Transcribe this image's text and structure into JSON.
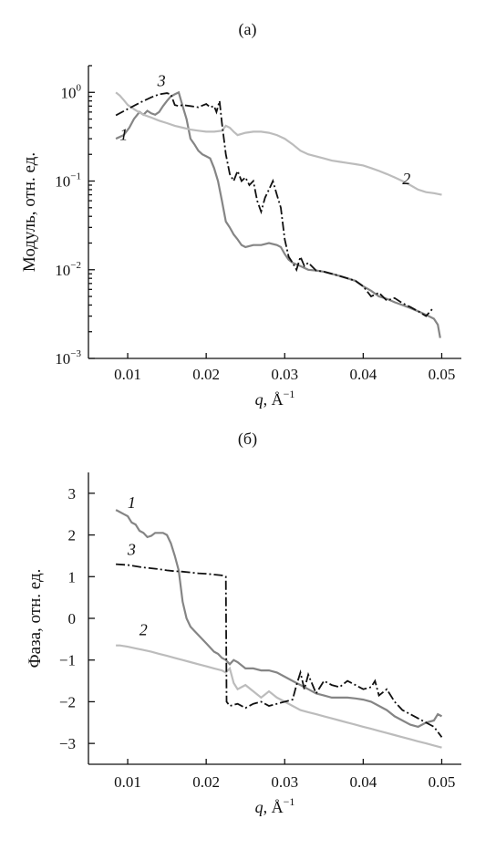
{
  "chart_data": [
    {
      "panel_label": "(а)",
      "type": "line",
      "ylabel": "Модуль, отн. ед.",
      "xlabel": {
        "var": "q",
        "rest": ", Å",
        "sup": "−1"
      },
      "xlim": [
        0.005,
        0.0525
      ],
      "yscale": "log",
      "ylim": [
        0.001,
        2.0
      ],
      "xticks": [
        0.01,
        0.02,
        0.03,
        0.04,
        0.05
      ],
      "xtick_labels": [
        "0.01",
        "0.02",
        "0.03",
        "0.04",
        "0.05"
      ],
      "yticks": [
        {
          "value": 1,
          "base": "10",
          "exp": "0"
        },
        {
          "value": 0.1,
          "base": "10",
          "exp": "−1"
        },
        {
          "value": 0.01,
          "base": "10",
          "exp": "−2"
        },
        {
          "value": 0.001,
          "base": "10",
          "exp": "−3"
        }
      ],
      "grid": false,
      "series": [
        {
          "name": "1",
          "style": "solid",
          "color": "#858585",
          "label_at": [
            0.0095,
            0.29
          ],
          "x": [
            0.0085,
            0.0095,
            0.0102,
            0.0108,
            0.0115,
            0.012,
            0.0125,
            0.013,
            0.0135,
            0.014,
            0.0145,
            0.015,
            0.0155,
            0.016,
            0.0165,
            0.017,
            0.0175,
            0.018,
            0.0185,
            0.019,
            0.0195,
            0.02,
            0.0205,
            0.021,
            0.0215,
            0.022,
            0.0225,
            0.023,
            0.0235,
            0.024,
            0.0245,
            0.025,
            0.026,
            0.027,
            0.028,
            0.029,
            0.0295,
            0.03,
            0.0305,
            0.031,
            0.032,
            0.033,
            0.034,
            0.035,
            0.036,
            0.037,
            0.038,
            0.039,
            0.04,
            0.041,
            0.042,
            0.043,
            0.044,
            0.045,
            0.046,
            0.047,
            0.048,
            0.049,
            0.0495,
            0.0498
          ],
          "y": [
            0.3,
            0.33,
            0.4,
            0.5,
            0.6,
            0.56,
            0.62,
            0.58,
            0.56,
            0.6,
            0.7,
            0.8,
            0.9,
            0.95,
            1.0,
            0.7,
            0.5,
            0.3,
            0.26,
            0.22,
            0.2,
            0.19,
            0.18,
            0.14,
            0.1,
            0.06,
            0.035,
            0.03,
            0.025,
            0.022,
            0.019,
            0.018,
            0.019,
            0.019,
            0.02,
            0.019,
            0.018,
            0.015,
            0.013,
            0.012,
            0.011,
            0.01,
            0.0098,
            0.0095,
            0.009,
            0.0085,
            0.008,
            0.0075,
            0.0065,
            0.0058,
            0.005,
            0.0047,
            0.0043,
            0.004,
            0.0037,
            0.0034,
            0.0031,
            0.0028,
            0.0024,
            0.0017
          ]
        },
        {
          "name": "2",
          "style": "solid",
          "color": "#bcbcbc",
          "label_at": [
            0.0455,
            0.092
          ],
          "x": [
            0.0085,
            0.009,
            0.0095,
            0.01,
            0.011,
            0.012,
            0.013,
            0.014,
            0.015,
            0.016,
            0.017,
            0.018,
            0.019,
            0.02,
            0.021,
            0.022,
            0.0225,
            0.023,
            0.0235,
            0.024,
            0.025,
            0.026,
            0.027,
            0.028,
            0.029,
            0.03,
            0.031,
            0.032,
            0.033,
            0.034,
            0.035,
            0.036,
            0.037,
            0.038,
            0.039,
            0.04,
            0.041,
            0.042,
            0.043,
            0.044,
            0.045,
            0.046,
            0.047,
            0.048,
            0.049,
            0.05
          ],
          "y": [
            1.0,
            0.92,
            0.82,
            0.72,
            0.63,
            0.56,
            0.52,
            0.48,
            0.45,
            0.42,
            0.4,
            0.38,
            0.37,
            0.36,
            0.36,
            0.37,
            0.42,
            0.4,
            0.36,
            0.33,
            0.35,
            0.36,
            0.36,
            0.35,
            0.33,
            0.3,
            0.26,
            0.22,
            0.2,
            0.19,
            0.18,
            0.17,
            0.165,
            0.16,
            0.155,
            0.15,
            0.14,
            0.13,
            0.12,
            0.11,
            0.1,
            0.09,
            0.08,
            0.075,
            0.073,
            0.07
          ]
        },
        {
          "name": "3",
          "style": "dashdot",
          "color": "#111111",
          "label_at": [
            0.0143,
            1.18
          ],
          "x": [
            0.0085,
            0.01,
            0.011,
            0.012,
            0.013,
            0.014,
            0.015,
            0.0155,
            0.016,
            0.0165,
            0.017,
            0.018,
            0.019,
            0.02,
            0.0205,
            0.021,
            0.0213,
            0.0217,
            0.022,
            0.0225,
            0.023,
            0.0235,
            0.024,
            0.0245,
            0.025,
            0.0255,
            0.026,
            0.0265,
            0.027,
            0.0275,
            0.028,
            0.0285,
            0.029,
            0.0295,
            0.03,
            0.0305,
            0.031,
            0.0315,
            0.032,
            0.0325,
            0.033,
            0.034,
            0.035,
            0.036,
            0.037,
            0.038,
            0.039,
            0.04,
            0.041,
            0.042,
            0.043,
            0.044,
            0.045,
            0.046,
            0.047,
            0.048,
            0.0488
          ],
          "y": [
            0.55,
            0.65,
            0.72,
            0.8,
            0.88,
            0.95,
            0.98,
            0.95,
            0.72,
            0.7,
            0.72,
            0.7,
            0.68,
            0.74,
            0.68,
            0.7,
            0.6,
            0.8,
            0.45,
            0.2,
            0.12,
            0.1,
            0.13,
            0.1,
            0.11,
            0.09,
            0.1,
            0.06,
            0.045,
            0.065,
            0.08,
            0.1,
            0.07,
            0.05,
            0.022,
            0.014,
            0.012,
            0.01,
            0.014,
            0.011,
            0.012,
            0.0098,
            0.0095,
            0.009,
            0.0085,
            0.008,
            0.0075,
            0.0065,
            0.005,
            0.0055,
            0.0045,
            0.0048,
            0.0042,
            0.0038,
            0.0034,
            0.003,
            0.0036
          ]
        }
      ]
    },
    {
      "panel_label": "(б)",
      "type": "line",
      "ylabel": "Фаза, отн. ед.",
      "xlabel": {
        "var": "q",
        "rest": ", Å",
        "sup": "−1"
      },
      "xlim": [
        0.005,
        0.0525
      ],
      "yscale": "linear",
      "ylim": [
        -3.5,
        3.5
      ],
      "xticks": [
        0.01,
        0.02,
        0.03,
        0.04,
        0.05
      ],
      "xtick_labels": [
        "0.01",
        "0.02",
        "0.03",
        "0.04",
        "0.05"
      ],
      "yticks": [
        {
          "value": 3,
          "label": "3"
        },
        {
          "value": 2,
          "label": "2"
        },
        {
          "value": 1,
          "label": "1"
        },
        {
          "value": 0,
          "label": "0"
        },
        {
          "value": -1,
          "label": "−1"
        },
        {
          "value": -2,
          "label": "−2"
        },
        {
          "value": -3,
          "label": "−3"
        }
      ],
      "grid": false,
      "series": [
        {
          "name": "1",
          "style": "solid",
          "color": "#858585",
          "label_at": [
            0.0105,
            2.65
          ],
          "x": [
            0.0085,
            0.009,
            0.0095,
            0.01,
            0.0105,
            0.011,
            0.0115,
            0.012,
            0.0125,
            0.013,
            0.0135,
            0.014,
            0.0145,
            0.015,
            0.0155,
            0.016,
            0.0165,
            0.017,
            0.0175,
            0.018,
            0.0185,
            0.019,
            0.0195,
            0.02,
            0.0205,
            0.021,
            0.0215,
            0.022,
            0.0225,
            0.023,
            0.0235,
            0.024,
            0.025,
            0.026,
            0.027,
            0.028,
            0.029,
            0.03,
            0.031,
            0.032,
            0.033,
            0.034,
            0.035,
            0.036,
            0.037,
            0.038,
            0.039,
            0.04,
            0.041,
            0.042,
            0.043,
            0.044,
            0.045,
            0.046,
            0.047,
            0.048,
            0.049,
            0.0495,
            0.05
          ],
          "y": [
            2.6,
            2.55,
            2.5,
            2.45,
            2.3,
            2.25,
            2.1,
            2.05,
            1.95,
            1.98,
            2.05,
            2.05,
            2.05,
            2.0,
            1.8,
            1.5,
            1.15,
            0.4,
            0.0,
            -0.2,
            -0.3,
            -0.4,
            -0.5,
            -0.6,
            -0.7,
            -0.8,
            -0.85,
            -0.95,
            -1.0,
            -1.1,
            -1.0,
            -1.05,
            -1.2,
            -1.2,
            -1.25,
            -1.25,
            -1.3,
            -1.4,
            -1.5,
            -1.6,
            -1.7,
            -1.8,
            -1.85,
            -1.9,
            -1.9,
            -1.9,
            -1.92,
            -1.95,
            -2.0,
            -2.1,
            -2.2,
            -2.35,
            -2.45,
            -2.55,
            -2.6,
            -2.5,
            -2.45,
            -2.3,
            -2.35
          ]
        },
        {
          "name": "2",
          "style": "solid",
          "color": "#bcbcbc",
          "label_at": [
            0.012,
            -0.4
          ],
          "x": [
            0.0085,
            0.009,
            0.01,
            0.011,
            0.012,
            0.013,
            0.014,
            0.015,
            0.016,
            0.017,
            0.018,
            0.019,
            0.02,
            0.021,
            0.022,
            0.0225,
            0.023,
            0.0235,
            0.024,
            0.025,
            0.026,
            0.027,
            0.028,
            0.029,
            0.03,
            0.031,
            0.032,
            0.033,
            0.034,
            0.035,
            0.036,
            0.037,
            0.038,
            0.039,
            0.04,
            0.041,
            0.042,
            0.043,
            0.044,
            0.045,
            0.046,
            0.047,
            0.048,
            0.049,
            0.05
          ],
          "y": [
            -0.65,
            -0.65,
            -0.68,
            -0.72,
            -0.76,
            -0.8,
            -0.85,
            -0.9,
            -0.95,
            -1.0,
            -1.05,
            -1.1,
            -1.15,
            -1.2,
            -1.25,
            -1.3,
            -1.2,
            -1.55,
            -1.7,
            -1.6,
            -1.75,
            -1.9,
            -1.75,
            -1.9,
            -2.0,
            -2.1,
            -2.2,
            -2.25,
            -2.3,
            -2.35,
            -2.4,
            -2.45,
            -2.5,
            -2.55,
            -2.6,
            -2.65,
            -2.7,
            -2.75,
            -2.8,
            -2.85,
            -2.9,
            -2.95,
            -3.0,
            -3.05,
            -3.1
          ]
        },
        {
          "name": "3",
          "style": "dashdot",
          "color": "#111111",
          "label_at": [
            0.0105,
            1.52
          ],
          "x": [
            0.0085,
            0.01,
            0.011,
            0.012,
            0.013,
            0.014,
            0.015,
            0.016,
            0.017,
            0.018,
            0.019,
            0.02,
            0.021,
            0.022,
            0.0225,
            0.0226,
            0.023,
            0.024,
            0.025,
            0.026,
            0.027,
            0.028,
            0.029,
            0.03,
            0.031,
            0.0315,
            0.032,
            0.0325,
            0.033,
            0.034,
            0.035,
            0.036,
            0.037,
            0.038,
            0.039,
            0.04,
            0.041,
            0.0415,
            0.042,
            0.043,
            0.044,
            0.045,
            0.046,
            0.047,
            0.048,
            0.049,
            0.05
          ],
          "y": [
            1.3,
            1.28,
            1.25,
            1.22,
            1.2,
            1.18,
            1.15,
            1.13,
            1.12,
            1.1,
            1.08,
            1.07,
            1.05,
            1.03,
            1.0,
            -2.0,
            -2.1,
            -2.05,
            -2.15,
            -2.05,
            -2.0,
            -2.1,
            -2.05,
            -2.0,
            -1.95,
            -1.6,
            -1.3,
            -1.7,
            -1.35,
            -1.8,
            -1.5,
            -1.6,
            -1.65,
            -1.5,
            -1.6,
            -1.7,
            -1.65,
            -1.5,
            -1.85,
            -1.7,
            -2.0,
            -2.2,
            -2.3,
            -2.4,
            -2.5,
            -2.6,
            -2.85
          ]
        }
      ]
    }
  ]
}
